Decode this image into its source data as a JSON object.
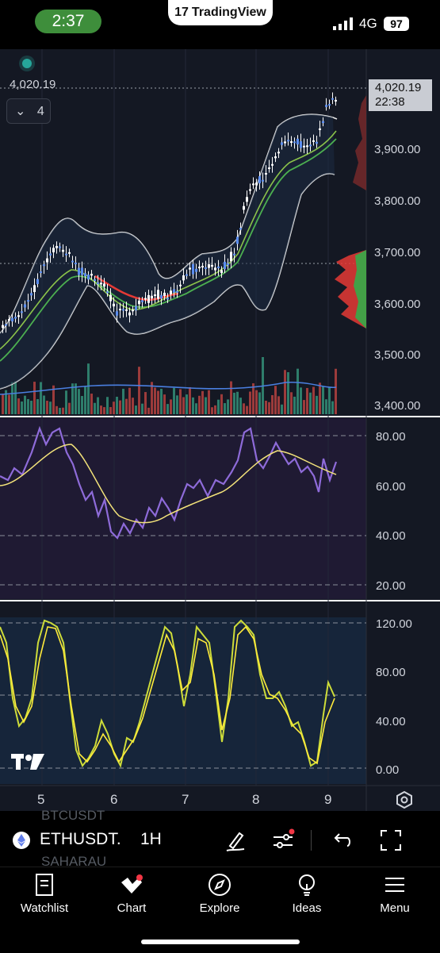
{
  "status_bar": {
    "time": "2:37",
    "network": "4G",
    "battery": "97",
    "badge": "TradingView",
    "badge_logo": "17"
  },
  "chart": {
    "last_price_left": "4,020.19",
    "price_tag": {
      "price": "4,020.19",
      "countdown": "22:38"
    },
    "collapse_count": "4",
    "price_axis": [
      "3,900.00",
      "3,800.00",
      "3,700.00",
      "3,600.00",
      "3,500.00",
      "3,400.00"
    ],
    "rsi_axis": [
      "80.00",
      "60.00",
      "40.00",
      "20.00"
    ],
    "stoch_axis": [
      "120.00",
      "80.00",
      "40.00",
      "0.00"
    ],
    "x_axis": [
      "5",
      "6",
      "7",
      "8",
      "9"
    ],
    "watermark": "17",
    "colors": {
      "up": "#5b8def",
      "down": "#5b8def",
      "bb": "#ffffff",
      "ema_fast": "#8bc34a",
      "ema_slow": "#4caf50",
      "rsi": "#8e6bd9",
      "rsi_ma": "#f3e37a",
      "stoch_k": "#cddc39",
      "stoch_d": "#ffeb3b",
      "background": "#141823"
    }
  },
  "toolbar": {
    "bg_symbol_top": "BTCUSDT",
    "bg_symbol_bottom": "SAHARAU",
    "symbol": "ETHUSDT.",
    "interval": "1H",
    "icons": [
      "draw-brush-icon",
      "indicators-icon",
      "undo-icon",
      "fullscreen-icon"
    ]
  },
  "bottom_nav": [
    {
      "label": "Watchlist",
      "icon": "watchlist-icon"
    },
    {
      "label": "Chart",
      "icon": "chart-icon"
    },
    {
      "label": "Explore",
      "icon": "compass-icon"
    },
    {
      "label": "Ideas",
      "icon": "lightbulb-icon"
    },
    {
      "label": "Menu",
      "icon": "menu-icon"
    }
  ]
}
